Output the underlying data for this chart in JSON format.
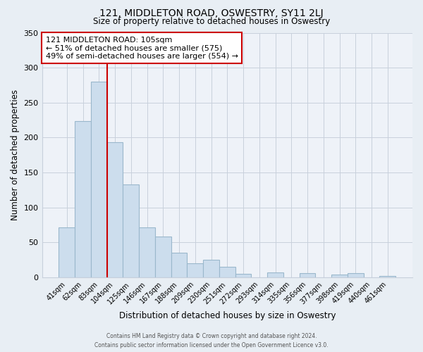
{
  "title": "121, MIDDLETON ROAD, OSWESTRY, SY11 2LJ",
  "subtitle": "Size of property relative to detached houses in Oswestry",
  "xlabel": "Distribution of detached houses by size in Oswestry",
  "ylabel": "Number of detached properties",
  "bar_labels": [
    "41sqm",
    "62sqm",
    "83sqm",
    "104sqm",
    "125sqm",
    "146sqm",
    "167sqm",
    "188sqm",
    "209sqm",
    "230sqm",
    "251sqm",
    "272sqm",
    "293sqm",
    "314sqm",
    "335sqm",
    "356sqm",
    "377sqm",
    "398sqm",
    "419sqm",
    "440sqm",
    "461sqm"
  ],
  "bar_values": [
    71,
    224,
    280,
    193,
    133,
    71,
    58,
    35,
    20,
    25,
    15,
    5,
    0,
    7,
    0,
    6,
    0,
    4,
    6,
    0,
    2
  ],
  "bar_color": "#ccdded",
  "bar_edge_color": "#9ab8cc",
  "highlight_bar_index": 3,
  "highlight_line_color": "#cc0000",
  "annotation_title": "121 MIDDLETON ROAD: 105sqm",
  "annotation_line1": "← 51% of detached houses are smaller (575)",
  "annotation_line2": "49% of semi-detached houses are larger (554) →",
  "annotation_box_color": "white",
  "annotation_box_edge_color": "#cc0000",
  "ylim": [
    0,
    350
  ],
  "yticks": [
    0,
    50,
    100,
    150,
    200,
    250,
    300,
    350
  ],
  "footer_line1": "Contains HM Land Registry data © Crown copyright and database right 2024.",
  "footer_line2": "Contains public sector information licensed under the Open Government Licence v3.0.",
  "bg_color": "#e8eef4",
  "plot_bg_color": "#eef2f8",
  "grid_color": "#c8d0dc"
}
